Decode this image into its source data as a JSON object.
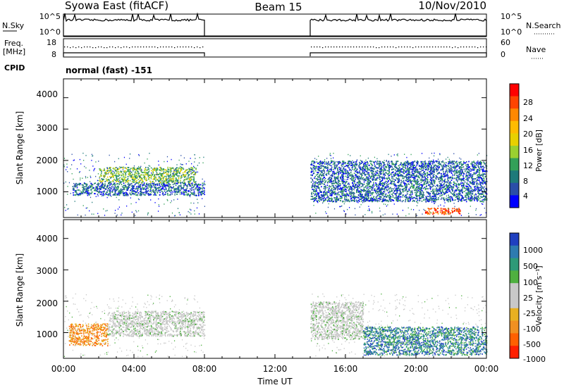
{
  "header": {
    "title": "Syowa East (fitACF)",
    "beam": "Beam 15",
    "date": "10/Nov/2010"
  },
  "x_axis": {
    "label": "Time UT",
    "ticks": [
      "00:00",
      "04:00",
      "08:00",
      "12:00",
      "16:00",
      "20:00",
      "00:00"
    ]
  },
  "top_panels": {
    "nsky": {
      "label": "N.Sky",
      "ticks": [
        "10^5",
        "10^0"
      ],
      "right_label": "N.Search",
      "right_ticks": [
        "10^5",
        "10^0"
      ]
    },
    "freq": {
      "label_line1": "Freq.",
      "label_line2": "[MHz]",
      "ticks": [
        "18",
        "8"
      ],
      "right_label": "Nave",
      "right_ticks": [
        "60",
        "0"
      ]
    },
    "cpid": {
      "label": "CPID",
      "value": "normal (fast) -151"
    }
  },
  "power_panel": {
    "ylabel": "Slant Range [km]",
    "yticks": [
      "4000",
      "3000",
      "2000",
      "1000"
    ],
    "colorbar_label": "Power [dB]",
    "colorbar_ticks": [
      "28",
      "24",
      "20",
      "16",
      "12",
      "8",
      "4"
    ],
    "colors": [
      "#ff0000",
      "#ff4400",
      "#ff8800",
      "#ffbb00",
      "#e8d000",
      "#9ad030",
      "#33a058",
      "#1e7a7a",
      "#2a4ea8",
      "#0000ff"
    ]
  },
  "velocity_panel": {
    "ylabel": "Slant Range [km]",
    "yticks": [
      "4000",
      "3000",
      "2000",
      "1000"
    ],
    "colorbar_label": "Velocity [m s⁻¹]",
    "colorbar_ticks": [
      "1000",
      "500",
      "100",
      "25",
      "-25",
      "-100",
      "-500",
      "-1000"
    ],
    "colors": [
      "#2040c0",
      "#2e7bb0",
      "#2e9a78",
      "#4fb040",
      "#c8c8c8",
      "#c8c8c8",
      "#e8b020",
      "#f09020",
      "#ff6000",
      "#ff2000"
    ]
  },
  "chart_data": {
    "type": "heatmap",
    "x_range_hours": [
      0,
      24
    ],
    "y_range_km": [
      180,
      4600
    ],
    "data_gaps_hours": [
      [
        8,
        14
      ]
    ],
    "power_regions": [
      {
        "t0": 0.5,
        "t1": 8.0,
        "r0": 900,
        "r1": 1300,
        "level": "low"
      },
      {
        "t0": 2.0,
        "t1": 7.5,
        "r0": 1300,
        "r1": 1800,
        "level": "medium"
      },
      {
        "t0": 14.0,
        "t1": 24.0,
        "r0": 700,
        "r1": 2000,
        "level": "low"
      },
      {
        "t0": 20.5,
        "t1": 22.5,
        "r0": 300,
        "r1": 500,
        "level": "high"
      }
    ],
    "velocity_regions": [
      {
        "t0": 0.3,
        "t1": 2.5,
        "r0": 600,
        "r1": 1300,
        "sign": "negative"
      },
      {
        "t0": 2.5,
        "t1": 8.0,
        "r0": 900,
        "r1": 1700,
        "sign": "near-zero"
      },
      {
        "t0": 14.0,
        "t1": 17.0,
        "r0": 800,
        "r1": 2000,
        "sign": "near-zero"
      },
      {
        "t0": 17.0,
        "t1": 24.0,
        "r0": 300,
        "r1": 1200,
        "sign": "positive"
      }
    ]
  }
}
